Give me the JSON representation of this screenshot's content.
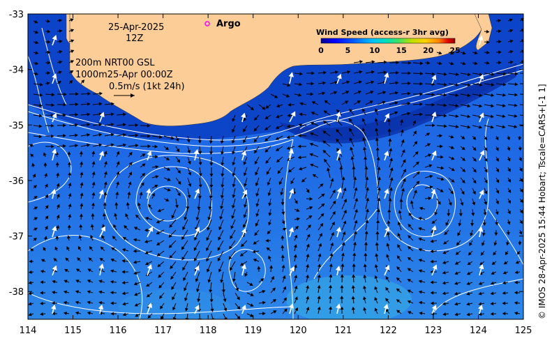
{
  "header": {
    "date": "25-Apr-2025",
    "time": "12Z",
    "depth_line1": "200m  NRT00 GSL",
    "depth_line2": "1000m25-Apr 00:00Z",
    "scale_label": "0.5m/s (1kt 24h)"
  },
  "legend": {
    "argo_label": "Argo",
    "argo_color": "#ff00ff"
  },
  "colorbar": {
    "title": "Wind Speed (access-r 3hr avg)",
    "ticks": [
      "0",
      "5",
      "10",
      "15",
      "20",
      "25"
    ],
    "colors": [
      "#000090",
      "#0000ff",
      "#0060ff",
      "#00c0ff",
      "#00e0c0",
      "#40e060",
      "#c0e000",
      "#ffd000",
      "#ff8000",
      "#e00000",
      "#900000"
    ]
  },
  "credit": "© IMOS 28-Apr-2025 15:44 Hobart; Tscale=CARS+[-1 1]",
  "axes": {
    "x_ticks": [
      "114",
      "115",
      "116",
      "117",
      "118",
      "119",
      "120",
      "121",
      "122",
      "123",
      "124",
      "125"
    ],
    "y_ticks": [
      "-33",
      "-34",
      "-35",
      "-36",
      "-37",
      "-38"
    ],
    "xlim": [
      114,
      125
    ],
    "ylim": [
      -38.5,
      -33
    ]
  },
  "colors": {
    "land": "#fccd96",
    "ocean_deep": "#1060d8",
    "ocean_shelf": "#0a3fbf",
    "contour": "#ffffff"
  }
}
